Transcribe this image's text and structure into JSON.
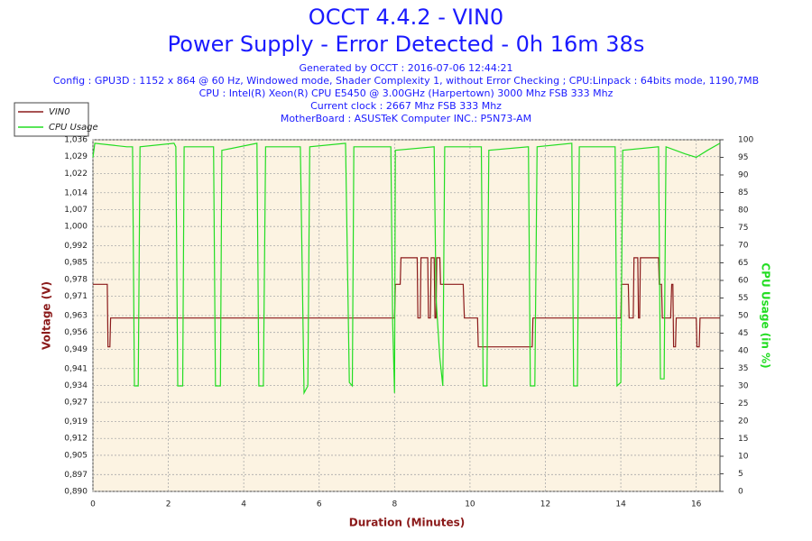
{
  "chart_data": {
    "type": "line",
    "title": "OCCT 4.4.2 - VIN0",
    "subtitle": "Power Supply - Error Detected - 0h 16m 38s",
    "info": [
      "Generated by OCCT : 2016-07-06 12:44:21",
      "Config : GPU3D : 1152 x 864 @ 60 Hz, Windowed mode, Shader Complexity 1, without Error Checking ; CPU:Linpack : 64bits mode, 1190,7MB",
      "CPU : Intel(R) Xeon(R) CPU E5450 @ 3.00GHz (Harpertown) 3000 Mhz FSB 333 Mhz",
      "Current clock : 2667 Mhz FSB 333 Mhz",
      "MotherBoard : ASUSTeK Computer INC.: P5N73-AM"
    ],
    "xlabel": "Duration (Minutes)",
    "ylabel": "Voltage (V)",
    "y2label": "CPU Usage (in %)",
    "xlim": [
      0,
      16.63
    ],
    "xticks": [
      0,
      2,
      4,
      6,
      8,
      10,
      12,
      14,
      16
    ],
    "ylim": [
      0.89,
      1.036
    ],
    "yticks": [
      {
        "value": 0.89,
        "label": "0,890"
      },
      {
        "value": 0.897,
        "label": "0,897"
      },
      {
        "value": 0.905,
        "label": "0,905"
      },
      {
        "value": 0.912,
        "label": "0,912"
      },
      {
        "value": 0.919,
        "label": "0,919"
      },
      {
        "value": 0.927,
        "label": "0,927"
      },
      {
        "value": 0.934,
        "label": "0,934"
      },
      {
        "value": 0.941,
        "label": "0,941"
      },
      {
        "value": 0.949,
        "label": "0,949"
      },
      {
        "value": 0.956,
        "label": "0,956"
      },
      {
        "value": 0.963,
        "label": "0,963"
      },
      {
        "value": 0.971,
        "label": "0,971"
      },
      {
        "value": 0.978,
        "label": "0,978"
      },
      {
        "value": 0.985,
        "label": "0,985"
      },
      {
        "value": 0.992,
        "label": "0,992"
      },
      {
        "value": 1.0,
        "label": "1,000"
      },
      {
        "value": 1.007,
        "label": "1,007"
      },
      {
        "value": 1.014,
        "label": "1,014"
      },
      {
        "value": 1.022,
        "label": "1,022"
      },
      {
        "value": 1.029,
        "label": "1,029"
      },
      {
        "value": 1.036,
        "label": "1,036"
      }
    ],
    "y2lim": [
      0,
      100
    ],
    "y2ticks": [
      0,
      5,
      10,
      15,
      20,
      25,
      30,
      35,
      40,
      45,
      50,
      55,
      60,
      65,
      70,
      75,
      80,
      85,
      90,
      95,
      100
    ],
    "grid": true,
    "legend": "top-left",
    "series": [
      {
        "name": "VIN0",
        "color": "#8b1a1a",
        "axis": "y",
        "x": [
          0,
          0.38,
          0.4,
          0.45,
          0.47,
          8.0,
          8.02,
          8.15,
          8.17,
          8.6,
          8.62,
          8.68,
          8.7,
          8.88,
          8.9,
          8.95,
          8.97,
          9.05,
          9.07,
          9.1,
          9.12,
          9.2,
          9.22,
          9.82,
          9.85,
          10.2,
          10.22,
          11.65,
          11.67,
          14.0,
          14.02,
          14.2,
          14.22,
          14.33,
          14.35,
          14.45,
          14.47,
          14.5,
          14.52,
          15.0,
          15.02,
          15.08,
          15.1,
          15.32,
          15.35,
          15.38,
          15.4,
          15.45,
          15.47,
          16.0,
          16.02,
          16.08,
          16.1,
          16.63
        ],
        "values": [
          0.976,
          0.976,
          0.95,
          0.95,
          0.962,
          0.962,
          0.976,
          0.976,
          0.987,
          0.987,
          0.962,
          0.962,
          0.987,
          0.987,
          0.962,
          0.962,
          0.987,
          0.987,
          0.962,
          0.962,
          0.987,
          0.987,
          0.976,
          0.976,
          0.962,
          0.962,
          0.95,
          0.95,
          0.962,
          0.962,
          0.976,
          0.976,
          0.962,
          0.962,
          0.987,
          0.987,
          0.962,
          0.962,
          0.987,
          0.987,
          0.976,
          0.976,
          0.962,
          0.962,
          0.976,
          0.976,
          0.95,
          0.95,
          0.962,
          0.962,
          0.95,
          0.95,
          0.962,
          0.962
        ]
      },
      {
        "name": "CPU Usage",
        "color": "#22dd22",
        "axis": "y2",
        "x": [
          0,
          0.05,
          0.9,
          1.05,
          1.1,
          1.2,
          1.25,
          2.15,
          2.2,
          2.25,
          2.38,
          2.42,
          3.2,
          3.25,
          3.38,
          3.42,
          4.35,
          4.4,
          4.52,
          4.58,
          5.5,
          5.6,
          5.7,
          5.75,
          6.7,
          6.8,
          6.88,
          6.92,
          7.9,
          7.95,
          8.0,
          8.02,
          9.05,
          9.1,
          9.2,
          9.28,
          9.33,
          10.3,
          10.35,
          10.45,
          10.5,
          11.55,
          11.6,
          11.72,
          11.78,
          12.7,
          12.75,
          12.85,
          12.9,
          13.85,
          13.9,
          14.0,
          14.05,
          15.0,
          15.05,
          15.15,
          15.2,
          15.7,
          16.0,
          16.3,
          16.63
        ],
        "values": [
          95,
          99,
          98,
          98,
          30,
          30,
          98,
          99,
          98,
          30,
          30,
          98,
          98,
          30,
          30,
          97,
          99,
          30,
          30,
          98,
          98,
          28,
          30,
          98,
          99,
          31,
          30,
          98,
          98,
          48,
          28,
          97,
          98,
          55,
          38,
          30,
          98,
          98,
          30,
          30,
          97,
          98,
          30,
          30,
          98,
          99,
          30,
          30,
          98,
          98,
          30,
          31,
          97,
          98,
          32,
          32,
          98,
          96,
          95,
          97,
          99
        ]
      }
    ]
  }
}
